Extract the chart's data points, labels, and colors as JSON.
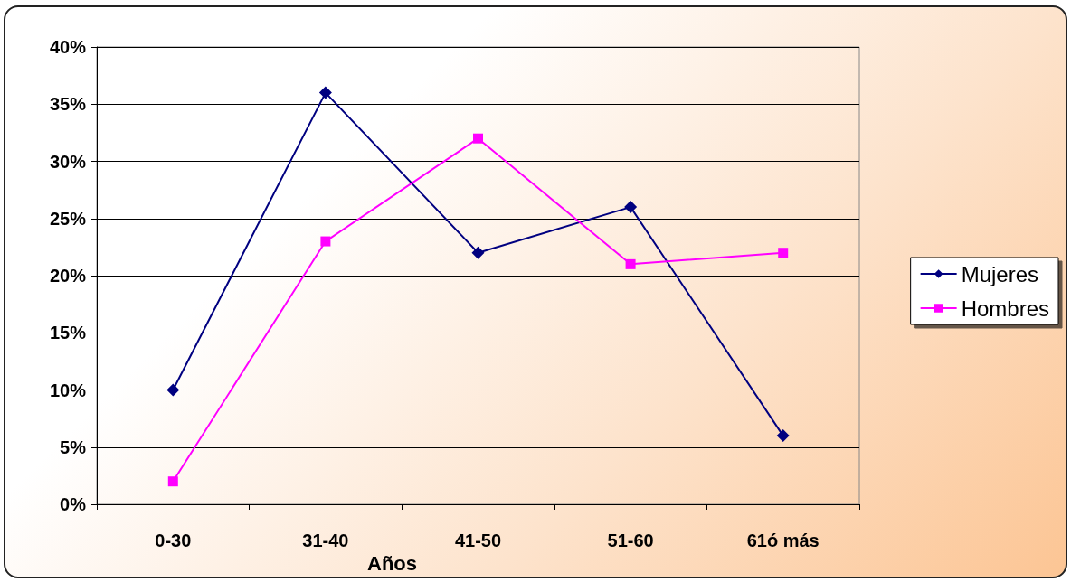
{
  "chart_data": {
    "type": "line",
    "xlabel": "Años",
    "categories": [
      "0-30",
      "31-40",
      "41-50",
      "51-60",
      "61ó más"
    ],
    "series": [
      {
        "name": "Mujeres",
        "color": "#000080",
        "marker": "diamond",
        "values": [
          10,
          36,
          22,
          26,
          6
        ]
      },
      {
        "name": "Hombres",
        "color": "#ff00ff",
        "marker": "square",
        "values": [
          2,
          23,
          32,
          21,
          22
        ]
      }
    ],
    "ylim": [
      0,
      40
    ],
    "yticks": [
      {
        "value": 0,
        "label": "0%"
      },
      {
        "value": 5,
        "label": "5%"
      },
      {
        "value": 10,
        "label": "10%"
      },
      {
        "value": 15,
        "label": "15%"
      },
      {
        "value": 20,
        "label": "20%"
      },
      {
        "value": 25,
        "label": "25%"
      },
      {
        "value": 30,
        "label": "30%"
      },
      {
        "value": 35,
        "label": "35%"
      },
      {
        "value": 40,
        "label": "40%"
      }
    ],
    "grid": "y",
    "legend": "right",
    "line_style": "solid"
  }
}
